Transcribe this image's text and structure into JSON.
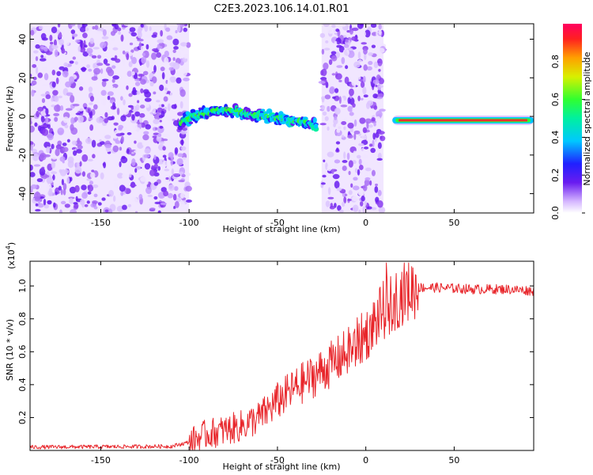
{
  "page_title": "C2E3.2023.106.14.01.R01",
  "colors": {
    "snr_line": "#e8262b",
    "noise": "#8a3cf0",
    "signal_core": "#e8322e",
    "background": "#ffffff"
  },
  "chart_data": [
    {
      "type": "heatmap",
      "title": "C2E3.2023.106.14.01.R01",
      "xlabel": "Height of straight line (km)",
      "ylabel": "Frequency (Hz)",
      "xlim": [
        -190,
        95
      ],
      "ylim": [
        -50,
        48
      ],
      "xticks": [
        -150,
        -100,
        -50,
        0,
        50
      ],
      "xtick_labels": [
        "-150",
        "-100",
        "-50",
        "0",
        "50"
      ],
      "yticks": [
        -40,
        -20,
        0,
        20,
        40
      ],
      "ytick_labels": [
        "-40",
        "-20",
        "0",
        "20",
        "40"
      ],
      "colorbar": {
        "label": "Normalized spectral amplitude",
        "range": [
          0,
          1
        ],
        "ticks": [
          0.0,
          0.2,
          0.4,
          0.6,
          0.8
        ],
        "tick_labels": [
          "0.0",
          "0.2",
          "0.4",
          "0.6",
          "0.8"
        ]
      },
      "signal_track": {
        "x": [
          -105,
          -95,
          -85,
          -75,
          -65,
          -55,
          -45,
          -35,
          -28
        ],
        "freq": [
          -3,
          1,
          3,
          3,
          1,
          0,
          -2,
          -3,
          -5
        ]
      },
      "steady_tone": {
        "x_start": 15,
        "x_end": 95,
        "freq": -2
      },
      "noise_regions": [
        {
          "x_start": -190,
          "x_end": -100
        },
        {
          "x_start": -25,
          "x_end": 10
        }
      ]
    },
    {
      "type": "line",
      "xlabel": "Height of straight line (km)",
      "ylabel": "SNR (10 * v/v)",
      "y_scale_label": "(x10",
      "y_scale_exp": "4",
      "y_scale_close": ")",
      "xlim": [
        -190,
        95
      ],
      "ylim": [
        0,
        1.15
      ],
      "xticks": [
        -150,
        -100,
        -50,
        0,
        50
      ],
      "xtick_labels": [
        "-150",
        "-100",
        "-50",
        "0",
        "50"
      ],
      "yticks": [
        0.2,
        0.4,
        0.6,
        0.8,
        1.0
      ],
      "ytick_labels": [
        "0.2",
        "0.4",
        "0.6",
        "0.8",
        "1.0"
      ],
      "series": [
        {
          "name": "SNR",
          "envelope_x": [
            -190,
            -110,
            -100,
            -90,
            -80,
            -70,
            -60,
            -50,
            -40,
            -30,
            -20,
            -10,
            0,
            5,
            10,
            15,
            20,
            25,
            30,
            40,
            60,
            80,
            95
          ],
          "envelope_y": [
            0.02,
            0.025,
            0.05,
            0.1,
            0.12,
            0.15,
            0.2,
            0.3,
            0.38,
            0.45,
            0.52,
            0.6,
            0.7,
            0.78,
            0.85,
            0.9,
            0.95,
            0.98,
            0.99,
            0.99,
            0.98,
            0.98,
            0.97
          ]
        }
      ]
    }
  ]
}
